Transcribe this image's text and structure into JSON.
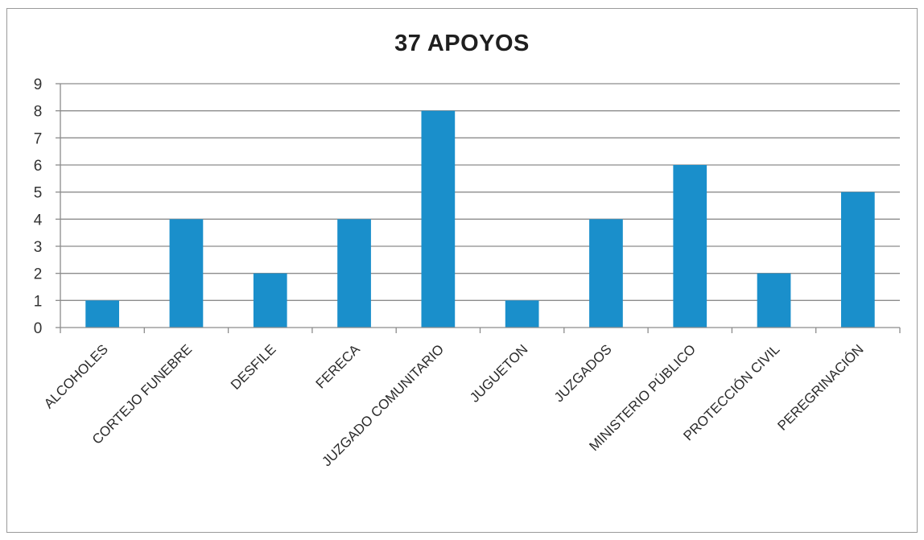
{
  "chart_data": {
    "type": "bar",
    "title": "37 APOYOS",
    "xlabel": "",
    "ylabel": "",
    "categories": [
      "ALCOHOLES",
      "CORTEJO FUNEBRE",
      "DESFILE",
      "FERECA",
      "JUZGADO COMUNITARIO",
      "JUGUETON",
      "JUZGADOS",
      "MINISTERIO PÚBLICO",
      "PROTECCIÓN CIVIL",
      "PEREGRINACIÓN"
    ],
    "values": [
      1,
      4,
      2,
      4,
      8,
      1,
      4,
      6,
      2,
      5
    ],
    "ylim": [
      0,
      9
    ],
    "yticks": [
      "0",
      "1",
      "2",
      "3",
      "4",
      "5",
      "6",
      "7",
      "8",
      "9"
    ],
    "grid": true,
    "legend": "none",
    "bar_color": "#1a8fcb",
    "grid_color": "#8c8c8c"
  }
}
